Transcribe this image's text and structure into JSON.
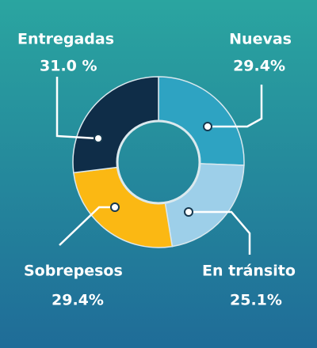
{
  "chart_data": {
    "type": "donut",
    "categories": [
      "Nuevas",
      "En tránsito",
      "Sobrepesos",
      "Entregadas"
    ],
    "values": [
      29.4,
      25.1,
      29.4,
      31.0
    ],
    "value_labels": [
      "29.4%",
      "25.1%",
      "29.4%",
      "31.0 %"
    ],
    "colors": [
      "#2ea3c2",
      "#9dcfe9",
      "#fbb813",
      "#0f2d48"
    ]
  }
}
